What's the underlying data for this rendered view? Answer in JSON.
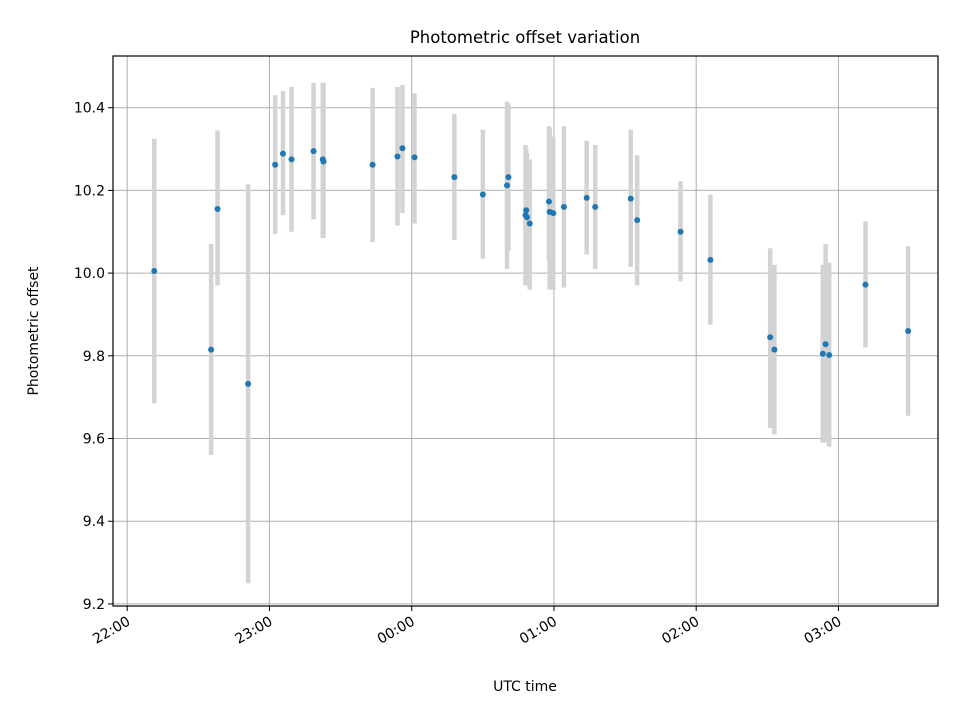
{
  "chart_data": {
    "type": "scatter",
    "title": "Photometric offset variation",
    "xlabel": "UTC time",
    "ylabel": "Photometric offset",
    "x_unit": "hours after 22:00 UTC",
    "xlim": [
      -0.1,
      5.7
    ],
    "ylim": [
      9.195,
      10.525
    ],
    "x_ticks": [
      {
        "value": 0,
        "label": "22:00"
      },
      {
        "value": 1,
        "label": "23:00"
      },
      {
        "value": 2,
        "label": "00:00"
      },
      {
        "value": 3,
        "label": "01:00"
      },
      {
        "value": 4,
        "label": "02:00"
      },
      {
        "value": 5,
        "label": "03:00"
      }
    ],
    "y_ticks": [
      {
        "value": 9.2,
        "label": "9.2"
      },
      {
        "value": 9.4,
        "label": "9.4"
      },
      {
        "value": 9.6,
        "label": "9.6"
      },
      {
        "value": 9.8,
        "label": "9.8"
      },
      {
        "value": 10.0,
        "label": "10.0"
      },
      {
        "value": 10.2,
        "label": "10.2"
      },
      {
        "value": 10.4,
        "label": "10.4"
      }
    ],
    "grid": true,
    "colors": {
      "point": "#1f77b4",
      "errorbar": "#d3d3d3",
      "grid": "#b0b0b0"
    },
    "points": [
      {
        "x": 0.19,
        "y": 10.005,
        "lo": 9.685,
        "hi": 10.325
      },
      {
        "x": 0.59,
        "y": 9.815,
        "lo": 9.56,
        "hi": 10.07
      },
      {
        "x": 0.635,
        "y": 10.155,
        "lo": 9.97,
        "hi": 10.345
      },
      {
        "x": 0.85,
        "y": 9.732,
        "lo": 9.25,
        "hi": 10.215
      },
      {
        "x": 1.04,
        "y": 10.262,
        "lo": 10.095,
        "hi": 10.43
      },
      {
        "x": 1.095,
        "y": 10.289,
        "lo": 10.14,
        "hi": 10.44
      },
      {
        "x": 1.155,
        "y": 10.275,
        "lo": 10.1,
        "hi": 10.45
      },
      {
        "x": 1.31,
        "y": 10.295,
        "lo": 10.13,
        "hi": 10.46
      },
      {
        "x": 1.375,
        "y": 10.275,
        "lo": 10.085,
        "hi": 10.46
      },
      {
        "x": 1.38,
        "y": 10.27,
        "lo": 10.085,
        "hi": 10.46
      },
      {
        "x": 1.725,
        "y": 10.262,
        "lo": 10.075,
        "hi": 10.448
      },
      {
        "x": 1.9,
        "y": 10.282,
        "lo": 10.115,
        "hi": 10.45
      },
      {
        "x": 1.935,
        "y": 10.302,
        "lo": 10.145,
        "hi": 10.455
      },
      {
        "x": 2.02,
        "y": 10.28,
        "lo": 10.12,
        "hi": 10.435
      },
      {
        "x": 2.3,
        "y": 10.232,
        "lo": 10.08,
        "hi": 10.385
      },
      {
        "x": 2.5,
        "y": 10.19,
        "lo": 10.035,
        "hi": 10.347
      },
      {
        "x": 2.67,
        "y": 10.212,
        "lo": 10.01,
        "hi": 10.415
      },
      {
        "x": 2.68,
        "y": 10.232,
        "lo": 10.055,
        "hi": 10.41
      },
      {
        "x": 2.8,
        "y": 10.14,
        "lo": 9.97,
        "hi": 10.31
      },
      {
        "x": 2.805,
        "y": 10.152,
        "lo": 9.97,
        "hi": 10.3
      },
      {
        "x": 2.81,
        "y": 10.135,
        "lo": 9.975,
        "hi": 10.29
      },
      {
        "x": 2.83,
        "y": 10.12,
        "lo": 9.96,
        "hi": 10.275
      },
      {
        "x": 2.965,
        "y": 10.173,
        "lo": 10.03,
        "hi": 10.355
      },
      {
        "x": 2.97,
        "y": 10.148,
        "lo": 9.96,
        "hi": 10.35
      },
      {
        "x": 2.995,
        "y": 10.145,
        "lo": 9.96,
        "hi": 10.33
      },
      {
        "x": 3.07,
        "y": 10.16,
        "lo": 9.965,
        "hi": 10.355
      },
      {
        "x": 3.23,
        "y": 10.182,
        "lo": 10.045,
        "hi": 10.32
      },
      {
        "x": 3.29,
        "y": 10.16,
        "lo": 10.01,
        "hi": 10.31
      },
      {
        "x": 3.54,
        "y": 10.18,
        "lo": 10.015,
        "hi": 10.347
      },
      {
        "x": 3.585,
        "y": 10.128,
        "lo": 9.97,
        "hi": 10.285
      },
      {
        "x": 3.89,
        "y": 10.1,
        "lo": 9.98,
        "hi": 10.222
      },
      {
        "x": 4.1,
        "y": 10.032,
        "lo": 9.875,
        "hi": 10.19
      },
      {
        "x": 4.52,
        "y": 9.845,
        "lo": 9.625,
        "hi": 10.06
      },
      {
        "x": 4.55,
        "y": 9.815,
        "lo": 9.61,
        "hi": 10.02
      },
      {
        "x": 4.89,
        "y": 9.805,
        "lo": 9.59,
        "hi": 10.02
      },
      {
        "x": 4.91,
        "y": 9.828,
        "lo": 9.59,
        "hi": 10.07
      },
      {
        "x": 4.935,
        "y": 9.802,
        "lo": 9.58,
        "hi": 10.025
      },
      {
        "x": 5.19,
        "y": 9.972,
        "lo": 9.82,
        "hi": 10.125
      },
      {
        "x": 5.49,
        "y": 9.86,
        "lo": 9.655,
        "hi": 10.065
      }
    ]
  }
}
